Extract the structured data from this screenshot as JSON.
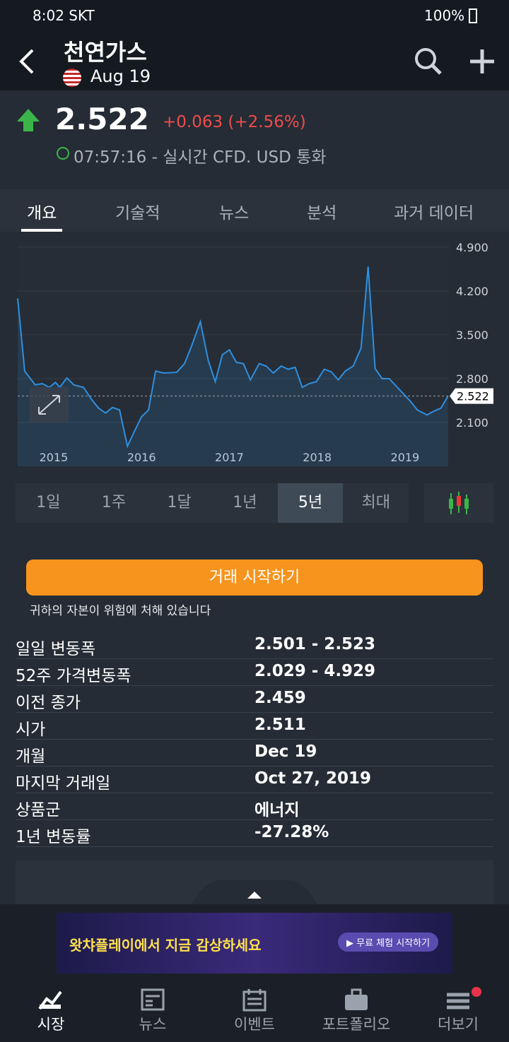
{
  "status_bar": {
    "time": "8:02 SKT",
    "battery": "100%"
  },
  "header": {
    "title": "천연가스",
    "subtitle": "Aug 19"
  },
  "quote": {
    "price": "2.522",
    "change": "+0.063 (+2.56%)",
    "time": "07:57:16 - 실시간 CFD. USD 통화"
  },
  "tabs": [
    "개요",
    "기술적",
    "뉴스",
    "분석",
    "과거 데이터"
  ],
  "chart_data": {
    "type": "line",
    "color": "#2f8fe0",
    "x": [
      2014.59,
      2014.67,
      2014.79,
      2014.87,
      2014.95,
      2015.02,
      2015.07,
      2015.15,
      2015.23,
      2015.34,
      2015.43,
      2015.51,
      2015.59,
      2015.67,
      2015.75,
      2015.84,
      2015.92,
      2016.0,
      2016.08,
      2016.16,
      2016.25,
      2016.4,
      2016.49,
      2016.57,
      2016.67,
      2016.76,
      2016.84,
      2016.92,
      2017.0,
      2017.08,
      2017.16,
      2017.24,
      2017.34,
      2017.42,
      2017.5,
      2017.59,
      2017.67,
      2017.75,
      2017.83,
      2017.91,
      2017.99,
      2018.08,
      2018.16,
      2018.24,
      2018.32,
      2018.41,
      2018.5,
      2018.58,
      2018.66,
      2018.74,
      2018.82,
      2018.9,
      2018.98,
      2019.06,
      2019.14,
      2019.25,
      2019.33,
      2019.41,
      2019.49
    ],
    "values": [
      4.08,
      2.92,
      2.7,
      2.72,
      2.66,
      2.74,
      2.66,
      2.81,
      2.7,
      2.66,
      2.47,
      2.33,
      2.25,
      2.34,
      2.3,
      1.72,
      1.96,
      2.19,
      2.3,
      2.92,
      2.89,
      2.9,
      3.04,
      3.32,
      3.71,
      3.09,
      2.75,
      3.18,
      3.26,
      3.06,
      3.04,
      2.78,
      3.04,
      3.0,
      2.89,
      3.0,
      2.95,
      2.98,
      2.66,
      2.72,
      2.75,
      2.95,
      2.91,
      2.78,
      2.92,
      3.0,
      3.29,
      4.59,
      2.96,
      2.8,
      2.8,
      2.68,
      2.56,
      2.44,
      2.3,
      2.22,
      2.28,
      2.33,
      2.52
    ],
    "last_value": 2.522,
    "xlim": [
      2014.59,
      2019.5
    ],
    "xticks": [
      2015,
      2016,
      2017,
      2018,
      2019
    ],
    "ylim": [
      1.4,
      5.0
    ],
    "yticks": [
      {
        "value": 2.1,
        "label": "2.100"
      },
      {
        "value": 2.8,
        "label": "2.800"
      },
      {
        "value": 3.5,
        "label": "3.500"
      },
      {
        "value": 4.2,
        "label": "4.200"
      },
      {
        "value": 4.9,
        "label": "4.900"
      }
    ],
    "grid": true
  },
  "ranges": [
    "1일",
    "1주",
    "1달",
    "1년",
    "5년",
    "최대"
  ],
  "trade_button": "거래 시작하기",
  "risk_warning": "귀하의 자본이 위험에 처해 있습니다",
  "stats": [
    [
      "일일 변동폭",
      "2.501 - 2.523"
    ],
    [
      "52주 가격변동폭",
      "2.029 - 4.929"
    ],
    [
      "이전 종가",
      "2.459"
    ],
    [
      "시가",
      "2.511"
    ],
    [
      "개월",
      "Dec 19"
    ],
    [
      "마지막 거래일",
      "Oct 27, 2019"
    ],
    [
      "상품군",
      "에너지"
    ],
    [
      "1년 변동률",
      "-27.28%"
    ]
  ],
  "ad": {
    "text": "왓챠플레이에서 지금 감상하세요",
    "button": "▶ 무료 체험 시작하기"
  },
  "nav": [
    "시장",
    "뉴스",
    "이벤트",
    "포트폴리오",
    "더보기"
  ]
}
